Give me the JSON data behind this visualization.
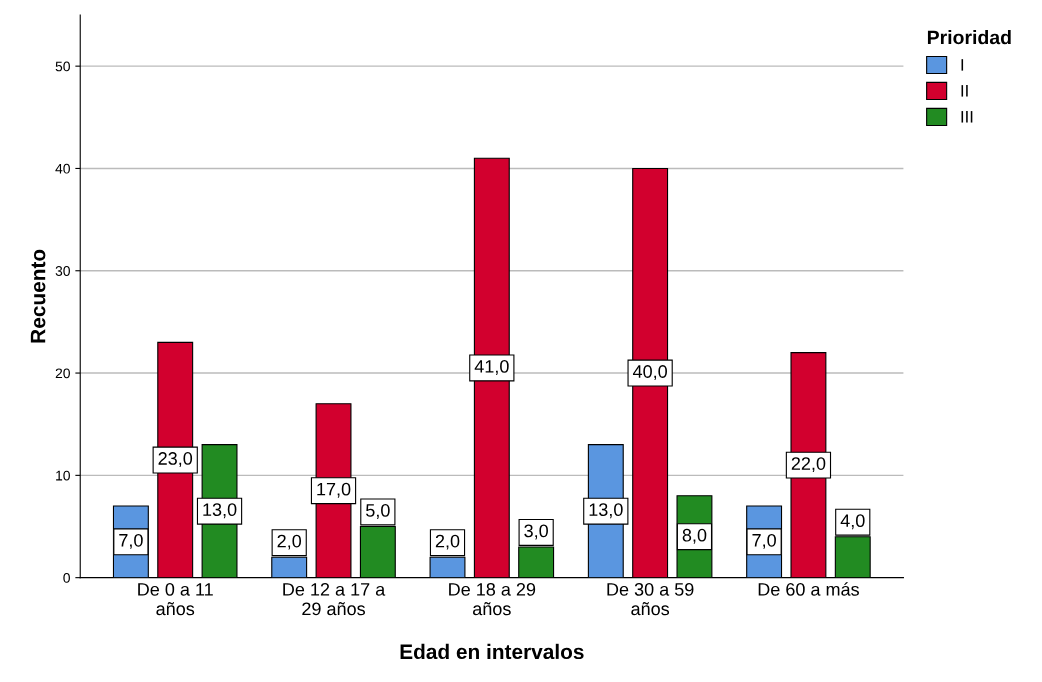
{
  "chart_data": {
    "type": "bar",
    "xlabel": "Edad en intervalos",
    "ylabel": "Recuento",
    "legend_title": "Prioridad",
    "categories": [
      "De 0 a 11\naños",
      "De 12 a 17 a\n29 años",
      "De 18 a 29\naños",
      "De 30 a 59\naños",
      "De 60 a más"
    ],
    "series": [
      {
        "name": "I",
        "color": "#5a96e0",
        "values": [
          7,
          2,
          2,
          13,
          7
        ],
        "value_labels": [
          "7,0",
          "2,0",
          "2,0",
          "13,0",
          "7,0"
        ]
      },
      {
        "name": "II",
        "color": "#d2002e",
        "values": [
          23,
          17,
          41,
          40,
          22
        ],
        "value_labels": [
          "23,0",
          "17,0",
          "41,0",
          "40,0",
          "22,0"
        ]
      },
      {
        "name": "III",
        "color": "#228b22",
        "values": [
          13,
          5,
          3,
          8,
          4
        ],
        "value_labels": [
          "13,0",
          "5,0",
          "3,0",
          "8,0",
          "4,0"
        ]
      }
    ],
    "ylim": [
      0,
      55
    ],
    "yticks": [
      0,
      10,
      20,
      30,
      40,
      50
    ],
    "grid": "y",
    "legend": "top right"
  }
}
